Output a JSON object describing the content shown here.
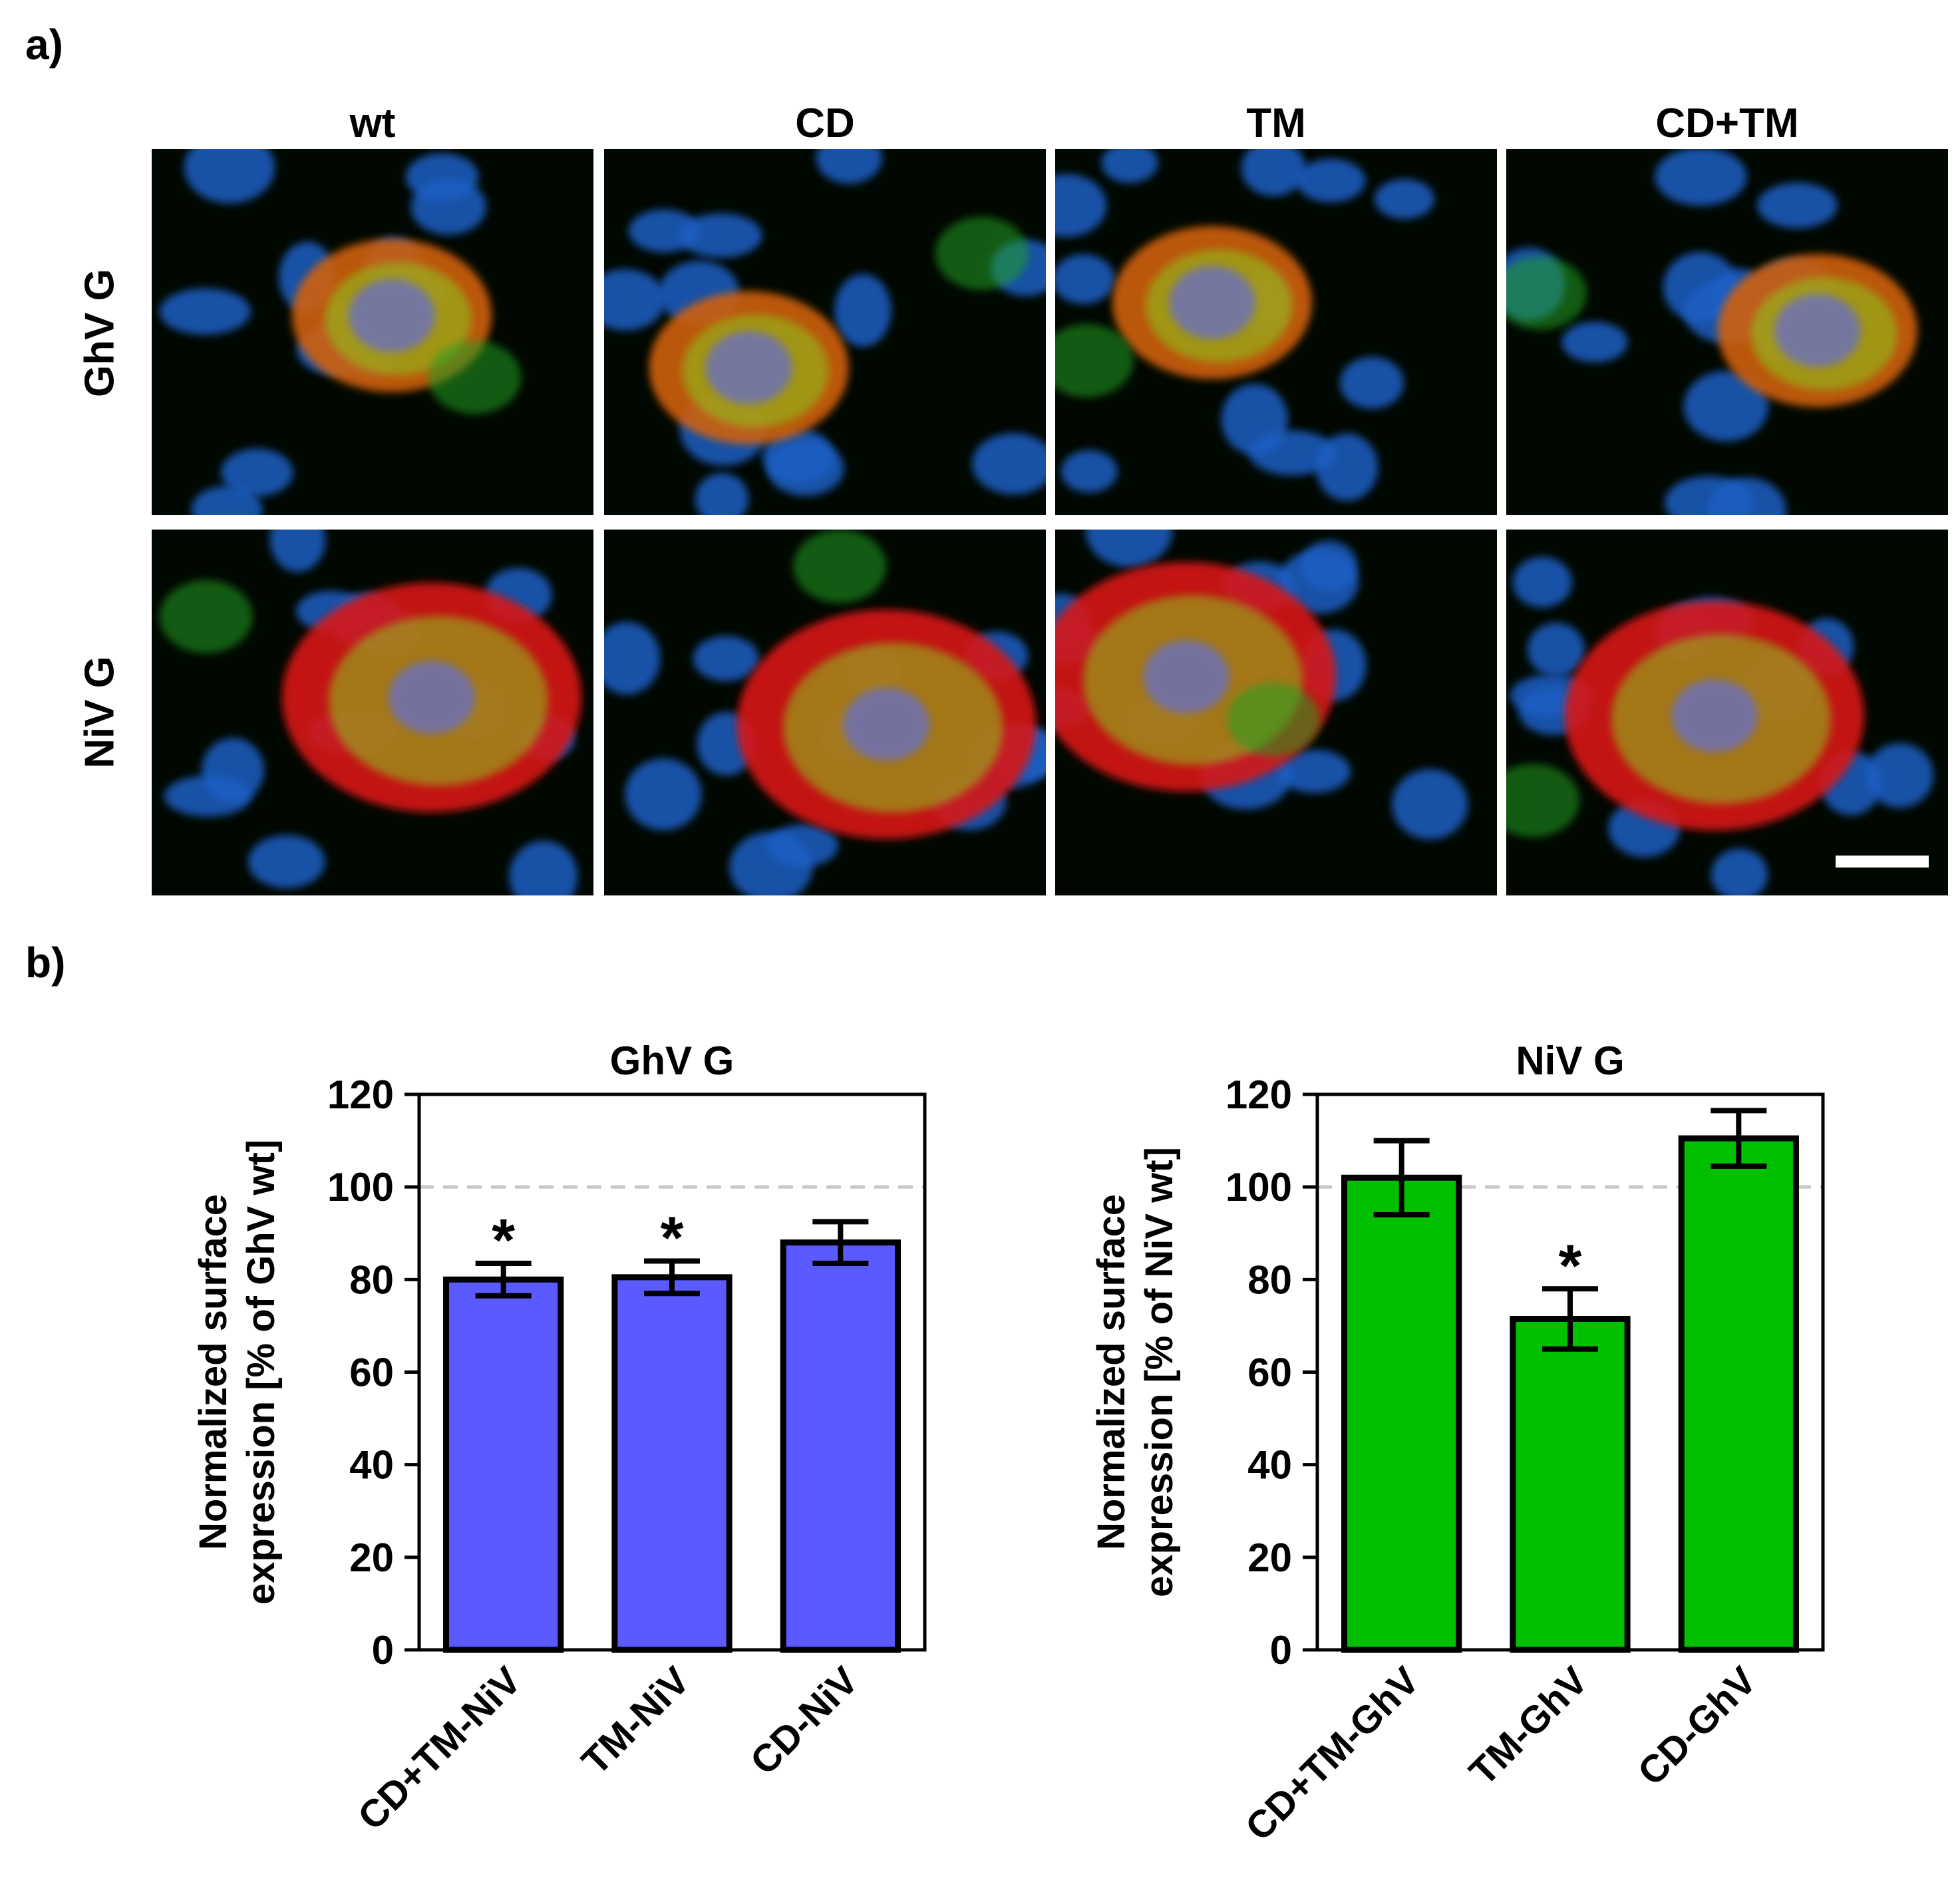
{
  "panel_a": {
    "label": "a)",
    "columns": [
      "wt",
      "CD",
      "TM",
      "CD+TM"
    ],
    "rows": [
      "GhV G",
      "NiV G"
    ]
  },
  "panel_b": {
    "label": "b)"
  },
  "chart_data": [
    {
      "type": "bar",
      "title": "GhV G",
      "ylabel": "Normalized surface expression [% of GhV wt]",
      "xlabel": "",
      "categories": [
        "CD+TM-NiV",
        "TM-NiV",
        "CD-NiV"
      ],
      "values": [
        80,
        80.5,
        88
      ],
      "errors": [
        3.5,
        3.5,
        4.5
      ],
      "significance": [
        "*",
        "*",
        ""
      ],
      "reference_line": 100,
      "ylim": [
        0,
        120
      ],
      "yticks": [
        0,
        20,
        40,
        60,
        80,
        100,
        120
      ],
      "bar_color": "#5a5aff",
      "grid": false
    },
    {
      "type": "bar",
      "title": "NiV G",
      "ylabel": "Normalized surface expression [% of NiV wt]",
      "xlabel": "",
      "categories": [
        "CD+TM-GhV",
        "TM-GhV",
        "CD-GhV"
      ],
      "values": [
        102,
        71.5,
        110.5
      ],
      "errors": [
        8,
        6.5,
        6
      ],
      "significance": [
        "",
        "*",
        ""
      ],
      "reference_line": 100,
      "ylim": [
        0,
        120
      ],
      "yticks": [
        0,
        20,
        40,
        60,
        80,
        100,
        120
      ],
      "bar_color": "#00c000",
      "grid": false
    }
  ]
}
